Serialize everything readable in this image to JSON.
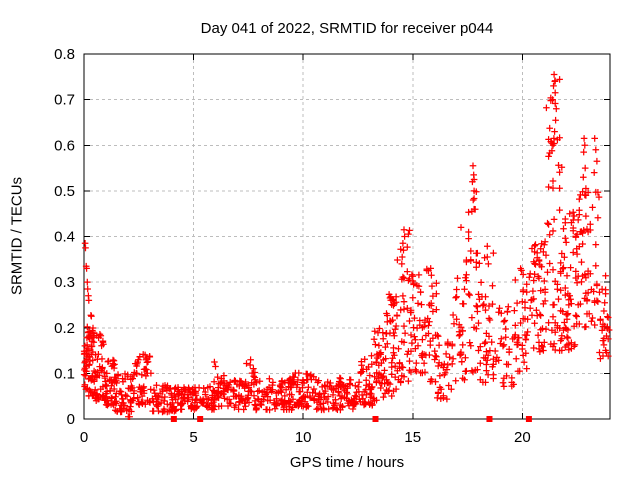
{
  "chart_data": {
    "type": "scatter",
    "title": "Day 041 of 2022, SRMTID for receiver p044",
    "xlabel": "GPS time / hours",
    "ylabel": "SRMTID / TECUs",
    "xlim": [
      0,
      24
    ],
    "ylim": [
      0,
      0.8
    ],
    "grid": true,
    "legend": "none",
    "xticks": [
      {
        "v": 0,
        "label": "0"
      },
      {
        "v": 5,
        "label": "5"
      },
      {
        "v": 10,
        "label": "10"
      },
      {
        "v": 15,
        "label": "15"
      },
      {
        "v": 20,
        "label": "20"
      }
    ],
    "yticks": [
      {
        "v": 0.0,
        "label": "0"
      },
      {
        "v": 0.1,
        "label": "0.1"
      },
      {
        "v": 0.2,
        "label": "0.2"
      },
      {
        "v": 0.3,
        "label": "0.3"
      },
      {
        "v": 0.4,
        "label": "0.4"
      },
      {
        "v": 0.5,
        "label": "0.5"
      },
      {
        "v": 0.6,
        "label": "0.6"
      },
      {
        "v": 0.7,
        "label": "0.7"
      },
      {
        "v": 0.8,
        "label": "0.8"
      }
    ],
    "colors": {
      "marker": "#ff0000",
      "grid": "#bdbdbd",
      "axis": "#000000",
      "background": "#ffffff"
    },
    "marker": "plus",
    "flag_marker": "filled-square",
    "zero_flag_hours": [
      4.1,
      5.3,
      13.3,
      18.5,
      20.3
    ],
    "seed": 12345,
    "segment_format": "[hourStart, hourEnd, count, yMin, yMax, lowSkewExponent, xQuantizeStep]",
    "density_segments": [
      [
        0.0,
        0.15,
        25,
        0.06,
        0.18,
        1.0,
        0
      ],
      [
        0.15,
        0.5,
        45,
        0.05,
        0.23,
        1.3,
        0
      ],
      [
        0.5,
        0.9,
        38,
        0.04,
        0.19,
        1.3,
        0
      ],
      [
        0.9,
        1.4,
        42,
        0.03,
        0.13,
        1.2,
        0
      ],
      [
        1.4,
        2.2,
        52,
        0.015,
        0.1,
        1.2,
        0
      ],
      [
        2.2,
        3.1,
        55,
        0.03,
        0.145,
        1.3,
        0
      ],
      [
        3.1,
        4.2,
        60,
        0.015,
        0.075,
        1.1,
        0
      ],
      [
        4.2,
        5.6,
        70,
        0.02,
        0.07,
        1.1,
        0
      ],
      [
        5.6,
        6.4,
        45,
        0.02,
        0.1,
        1.4,
        0
      ],
      [
        6.4,
        7.4,
        55,
        0.02,
        0.085,
        1.2,
        0
      ],
      [
        7.4,
        7.8,
        20,
        0.03,
        0.135,
        1.3,
        0
      ],
      [
        7.8,
        9.5,
        90,
        0.02,
        0.09,
        1.3,
        0
      ],
      [
        9.5,
        10.6,
        62,
        0.025,
        0.105,
        1.3,
        0
      ],
      [
        10.6,
        12.4,
        95,
        0.02,
        0.09,
        1.3,
        0
      ],
      [
        12.4,
        13.2,
        48,
        0.03,
        0.14,
        1.2,
        0
      ],
      [
        13.2,
        13.8,
        42,
        0.04,
        0.2,
        1.1,
        0
      ],
      [
        13.8,
        14.3,
        46,
        0.05,
        0.28,
        1.1,
        0.04
      ],
      [
        14.3,
        14.9,
        42,
        0.08,
        0.42,
        1.3,
        0.05
      ],
      [
        14.9,
        15.6,
        46,
        0.1,
        0.33,
        1.1,
        0.04
      ],
      [
        15.6,
        16.1,
        30,
        0.05,
        0.33,
        1.2,
        0.04
      ],
      [
        16.1,
        16.8,
        30,
        0.04,
        0.19,
        1.2,
        0.04
      ],
      [
        16.8,
        17.4,
        32,
        0.08,
        0.31,
        1.2,
        0.04
      ],
      [
        17.4,
        18.0,
        36,
        0.1,
        0.56,
        1.5,
        0.05
      ],
      [
        18.0,
        18.7,
        42,
        0.08,
        0.38,
        1.25,
        0.04
      ],
      [
        18.7,
        19.6,
        32,
        0.07,
        0.26,
        1.2,
        0.04
      ],
      [
        19.6,
        20.4,
        42,
        0.1,
        0.34,
        1.2,
        0.04
      ],
      [
        20.4,
        21.1,
        52,
        0.14,
        0.39,
        1.0,
        0.04
      ],
      [
        21.1,
        21.8,
        62,
        0.15,
        0.75,
        1.6,
        0.05
      ],
      [
        21.8,
        22.5,
        56,
        0.15,
        0.46,
        1.15,
        0.04
      ],
      [
        22.5,
        23.5,
        62,
        0.2,
        0.52,
        1.2,
        0.05
      ],
      [
        23.5,
        23.95,
        30,
        0.13,
        0.32,
        1.2,
        0.04
      ]
    ],
    "notable_points": [
      [
        0.05,
        0.385
      ],
      [
        0.07,
        0.375
      ],
      [
        0.1,
        0.335
      ],
      [
        0.12,
        0.33
      ],
      [
        0.15,
        0.3
      ],
      [
        0.17,
        0.285
      ],
      [
        0.2,
        0.27
      ],
      [
        0.22,
        0.26
      ],
      [
        2.02,
        0.005
      ],
      [
        2.08,
        0.005
      ],
      [
        5.95,
        0.125
      ],
      [
        6.0,
        0.115
      ],
      [
        7.6,
        0.13
      ],
      [
        14.6,
        0.415
      ],
      [
        14.63,
        0.4
      ],
      [
        14.55,
        0.385
      ],
      [
        14.58,
        0.37
      ],
      [
        14.52,
        0.355
      ],
      [
        15.82,
        0.33
      ],
      [
        15.85,
        0.315
      ],
      [
        16.3,
        0.065
      ],
      [
        17.2,
        0.42
      ],
      [
        17.75,
        0.555
      ],
      [
        17.78,
        0.535
      ],
      [
        17.72,
        0.52
      ],
      [
        17.8,
        0.5
      ],
      [
        17.76,
        0.48
      ],
      [
        17.7,
        0.455
      ],
      [
        18.4,
        0.355
      ],
      [
        18.45,
        0.34
      ],
      [
        21.45,
        0.755
      ],
      [
        21.48,
        0.74
      ],
      [
        21.42,
        0.73
      ],
      [
        21.5,
        0.715
      ],
      [
        21.38,
        0.7
      ],
      [
        21.55,
        0.68
      ],
      [
        21.52,
        0.655
      ],
      [
        21.47,
        0.63
      ],
      [
        21.44,
        0.615
      ],
      [
        21.4,
        0.6
      ],
      [
        22.82,
        0.615
      ],
      [
        22.85,
        0.6
      ],
      [
        22.8,
        0.585
      ],
      [
        22.87,
        0.55
      ],
      [
        22.78,
        0.53
      ],
      [
        22.9,
        0.49
      ],
      [
        23.3,
        0.615
      ],
      [
        23.35,
        0.59
      ],
      [
        23.4,
        0.565
      ],
      [
        23.28,
        0.54
      ]
    ]
  }
}
